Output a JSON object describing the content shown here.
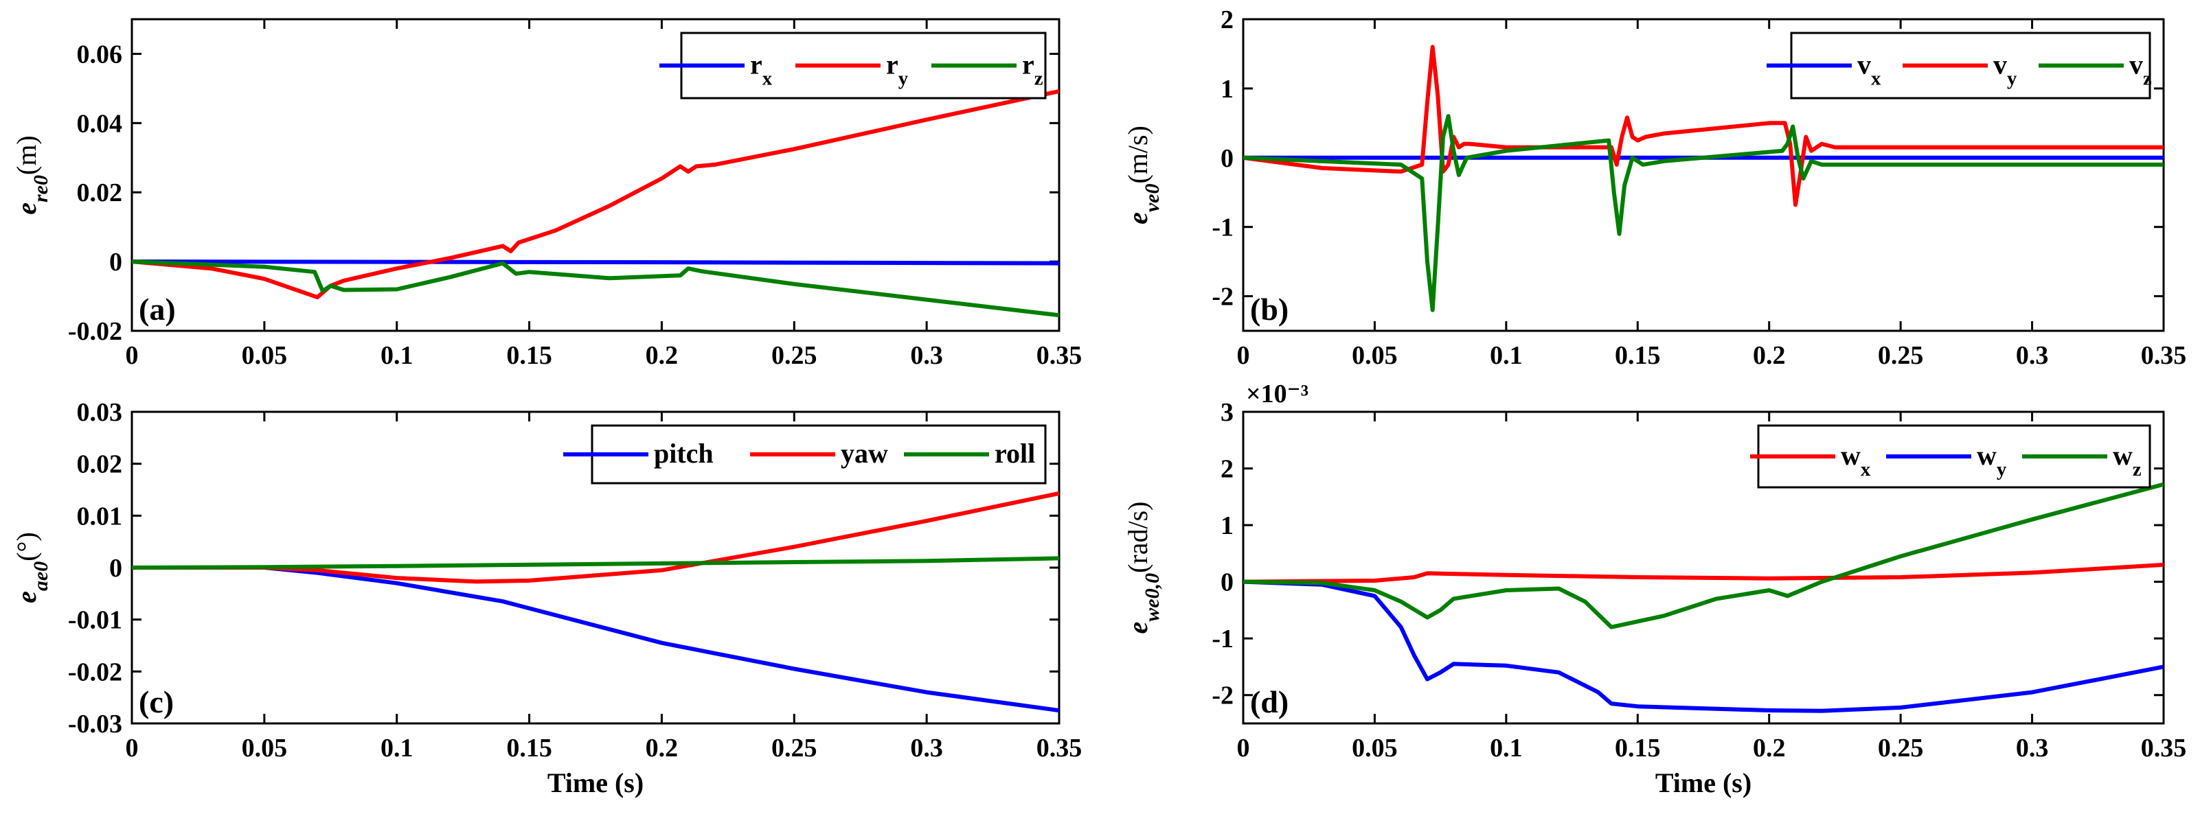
{
  "colors": {
    "blue": "#0000ff",
    "red": "#ff0000",
    "green": "#007f00"
  },
  "chart_data": [
    {
      "type": "line",
      "panel_label": "(a)",
      "xlabel": "",
      "ylabel": {
        "base": "e",
        "sub": "re0",
        "unit": "(m)"
      },
      "xlim": [
        0,
        0.35
      ],
      "ylim": [
        -0.02,
        0.07
      ],
      "xticks": [
        "0",
        "0.05",
        "0.1",
        "0.15",
        "0.2",
        "0.25",
        "0.3",
        "0.35"
      ],
      "yticks": [
        "-0.02",
        "0",
        "0.02",
        "0.04",
        "0.06"
      ],
      "ytick_values": [
        -0.02,
        0,
        0.02,
        0.04,
        0.06
      ],
      "exponent": "",
      "legend": {
        "placement": "top-right"
      },
      "series": [
        {
          "name": "r",
          "sub": "x",
          "color": "blue",
          "x": [
            0,
            0.1,
            0.2,
            0.3,
            0.35
          ],
          "y": [
            0,
            -0.0001,
            -0.0002,
            -0.0004,
            -0.0005
          ]
        },
        {
          "name": "r",
          "sub": "y",
          "color": "red",
          "x": [
            0,
            0.03,
            0.05,
            0.07,
            0.075,
            0.08,
            0.1,
            0.12,
            0.14,
            0.143,
            0.146,
            0.16,
            0.18,
            0.2,
            0.207,
            0.21,
            0.213,
            0.22,
            0.25,
            0.3,
            0.35
          ],
          "y": [
            0,
            -0.002,
            -0.005,
            -0.0103,
            -0.007,
            -0.0055,
            -0.002,
            0.001,
            0.0045,
            0.003,
            0.0055,
            0.009,
            0.016,
            0.024,
            0.0275,
            0.026,
            0.0275,
            0.028,
            0.0325,
            0.041,
            0.0492
          ]
        },
        {
          "name": "r",
          "sub": "z",
          "color": "green",
          "x": [
            0,
            0.05,
            0.069,
            0.072,
            0.075,
            0.08,
            0.1,
            0.12,
            0.14,
            0.145,
            0.15,
            0.18,
            0.207,
            0.21,
            0.215,
            0.25,
            0.3,
            0.35
          ],
          "y": [
            0,
            -0.0015,
            -0.003,
            -0.0085,
            -0.007,
            -0.0082,
            -0.008,
            -0.0045,
            -0.0005,
            -0.0035,
            -0.003,
            -0.0048,
            -0.004,
            -0.002,
            -0.0028,
            -0.0065,
            -0.011,
            -0.0155
          ]
        }
      ]
    },
    {
      "type": "line",
      "panel_label": "(b)",
      "xlabel": "",
      "ylabel": {
        "base": "e",
        "sub": "ve0",
        "unit": "(m/s)"
      },
      "xlim": [
        0,
        0.35
      ],
      "ylim": [
        -2.5,
        2
      ],
      "xticks": [
        "0",
        "0.05",
        "0.1",
        "0.15",
        "0.2",
        "0.25",
        "0.3",
        "0.35"
      ],
      "yticks": [
        "-2",
        "-1",
        "0",
        "1",
        "2"
      ],
      "ytick_values": [
        -2,
        -1,
        0,
        1,
        2
      ],
      "exponent": "",
      "legend": {
        "placement": "top-right"
      },
      "series": [
        {
          "name": "v",
          "sub": "x",
          "color": "blue",
          "x": [
            0,
            0.35
          ],
          "y": [
            0,
            0
          ]
        },
        {
          "name": "v",
          "sub": "y",
          "color": "red",
          "x": [
            0,
            0.03,
            0.06,
            0.068,
            0.07,
            0.072,
            0.074,
            0.076,
            0.078,
            0.08,
            0.082,
            0.084,
            0.086,
            0.1,
            0.14,
            0.142,
            0.144,
            0.146,
            0.148,
            0.15,
            0.153,
            0.16,
            0.2,
            0.206,
            0.208,
            0.21,
            0.212,
            0.214,
            0.216,
            0.22,
            0.225,
            0.35
          ],
          "y": [
            0,
            -0.15,
            -0.2,
            -0.1,
            0.8,
            1.6,
            0.9,
            -0.2,
            -0.1,
            0.3,
            0.15,
            0.2,
            0.2,
            0.15,
            0.15,
            -0.1,
            0.3,
            0.58,
            0.3,
            0.25,
            0.3,
            0.35,
            0.5,
            0.5,
            0.2,
            -0.68,
            -0.2,
            0.3,
            0.1,
            0.2,
            0.15,
            0.15
          ]
        },
        {
          "name": "v",
          "sub": "z",
          "color": "green",
          "x": [
            0,
            0.06,
            0.068,
            0.07,
            0.072,
            0.074,
            0.076,
            0.078,
            0.08,
            0.082,
            0.085,
            0.1,
            0.139,
            0.141,
            0.143,
            0.145,
            0.148,
            0.152,
            0.16,
            0.205,
            0.207,
            0.209,
            0.211,
            0.213,
            0.216,
            0.22,
            0.35
          ],
          "y": [
            0,
            -0.1,
            -0.3,
            -1.5,
            -2.2,
            -1.0,
            0.3,
            0.6,
            0.1,
            -0.25,
            0.0,
            0.1,
            0.25,
            -0.5,
            -1.1,
            -0.4,
            0.0,
            -0.1,
            -0.05,
            0.1,
            0.2,
            0.45,
            0.0,
            -0.3,
            -0.05,
            -0.1,
            -0.1
          ]
        }
      ]
    },
    {
      "type": "line",
      "panel_label": "(c)",
      "xlabel": "Time (s)",
      "ylabel": {
        "base": "e",
        "sub": "ae0",
        "unit": "(°)"
      },
      "xlim": [
        0,
        0.35
      ],
      "ylim": [
        -0.03,
        0.03
      ],
      "xticks": [
        "0",
        "0.05",
        "0.1",
        "0.15",
        "0.2",
        "0.25",
        "0.3",
        "0.35"
      ],
      "yticks": [
        "-0.03",
        "-0.02",
        "-0.01",
        "0",
        "0.01",
        "0.02",
        "0.03"
      ],
      "ytick_values": [
        -0.03,
        -0.02,
        -0.01,
        0,
        0.01,
        0.02,
        0.03
      ],
      "exponent": "",
      "legend": {
        "placement": "top-right"
      },
      "series": [
        {
          "name": "pitch",
          "sub": "",
          "color": "blue",
          "x": [
            0,
            0.05,
            0.07,
            0.1,
            0.14,
            0.2,
            0.25,
            0.3,
            0.35
          ],
          "y": [
            0,
            0,
            -0.001,
            -0.003,
            -0.0065,
            -0.0145,
            -0.0195,
            -0.024,
            -0.0275
          ]
        },
        {
          "name": "yaw",
          "sub": "",
          "color": "red",
          "x": [
            0,
            0.05,
            0.07,
            0.1,
            0.13,
            0.15,
            0.2,
            0.25,
            0.3,
            0.35
          ],
          "y": [
            0,
            0,
            -0.0005,
            -0.002,
            -0.0027,
            -0.0025,
            -0.0005,
            0.004,
            0.009,
            0.0143
          ]
        },
        {
          "name": "roll",
          "sub": "",
          "color": "green",
          "x": [
            0,
            0.05,
            0.1,
            0.2,
            0.3,
            0.35
          ],
          "y": [
            0,
            0.0001,
            0.0003,
            0.0008,
            0.0013,
            0.0018
          ]
        }
      ]
    },
    {
      "type": "line",
      "panel_label": "(d)",
      "xlabel": "Time (s)",
      "ylabel": {
        "base": "e",
        "sub": "we0,0",
        "unit": "(rad/s)"
      },
      "xlim": [
        0,
        0.35
      ],
      "ylim": [
        -2.5,
        3
      ],
      "xticks": [
        "0",
        "0.05",
        "0.1",
        "0.15",
        "0.2",
        "0.25",
        "0.3",
        "0.35"
      ],
      "yticks": [
        "-2",
        "-1",
        "0",
        "1",
        "2",
        "3"
      ],
      "ytick_values": [
        -2,
        -1,
        0,
        1,
        2,
        3
      ],
      "exponent": "×10⁻³",
      "legend": {
        "placement": "top-right"
      },
      "series": [
        {
          "name": "w",
          "sub": "x",
          "color": "red",
          "x": [
            0,
            0.05,
            0.065,
            0.07,
            0.08,
            0.1,
            0.15,
            0.2,
            0.25,
            0.3,
            0.35
          ],
          "y": [
            0,
            0.02,
            0.08,
            0.15,
            0.14,
            0.12,
            0.08,
            0.06,
            0.08,
            0.16,
            0.3
          ]
        },
        {
          "name": "w",
          "sub": "y",
          "color": "blue",
          "x": [
            0,
            0.03,
            0.05,
            0.06,
            0.065,
            0.07,
            0.075,
            0.08,
            0.1,
            0.12,
            0.135,
            0.14,
            0.15,
            0.2,
            0.22,
            0.25,
            0.3,
            0.35
          ],
          "y": [
            0,
            -0.05,
            -0.25,
            -0.8,
            -1.3,
            -1.72,
            -1.6,
            -1.45,
            -1.48,
            -1.6,
            -1.95,
            -2.15,
            -2.2,
            -2.27,
            -2.28,
            -2.22,
            -1.95,
            -1.5
          ]
        },
        {
          "name": "w",
          "sub": "z",
          "color": "green",
          "x": [
            0,
            0.03,
            0.05,
            0.06,
            0.07,
            0.075,
            0.08,
            0.1,
            0.12,
            0.13,
            0.14,
            0.16,
            0.18,
            0.2,
            0.207,
            0.22,
            0.25,
            0.3,
            0.35
          ],
          "y": [
            0,
            -0.02,
            -0.15,
            -0.35,
            -0.63,
            -0.5,
            -0.3,
            -0.15,
            -0.12,
            -0.35,
            -0.8,
            -0.6,
            -0.3,
            -0.15,
            -0.25,
            0.0,
            0.45,
            1.1,
            1.72
          ]
        }
      ]
    }
  ]
}
